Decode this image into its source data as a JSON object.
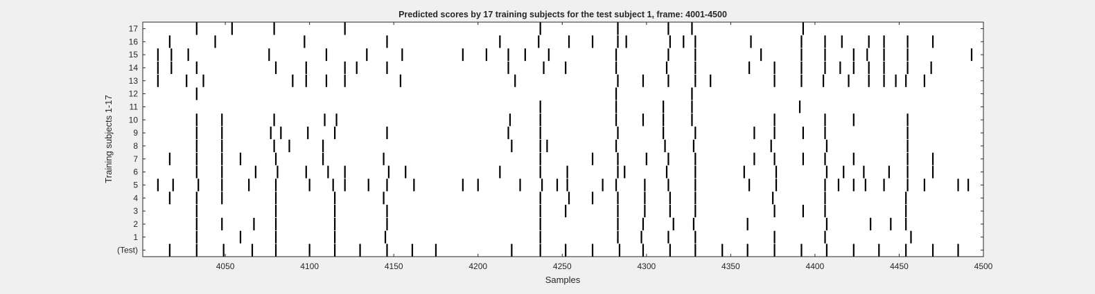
{
  "chart_data": {
    "type": "event-raster",
    "title": "Predicted scores by 17 training subjects for the test subject 1, frame: 4001-4500",
    "xlabel": "Samples",
    "ylabel": "Training subjects 1-17",
    "xlim": [
      4001,
      4500
    ],
    "x_ticks": [
      4050,
      4100,
      4150,
      4200,
      4250,
      4300,
      4350,
      4400,
      4450,
      4500
    ],
    "rows": [
      {
        "label": "(Test)",
        "events": [
          4017,
          4033,
          4049,
          4066,
          4080,
          4100,
          4115,
          4130,
          4146,
          4161,
          4175,
          4220,
          4237,
          4252,
          4268,
          4284,
          4298,
          4314,
          4329,
          4345,
          4360,
          4376,
          4392,
          4407,
          4423,
          4438,
          4454,
          4470,
          4485
        ]
      },
      {
        "label": "1",
        "events": [
          4033,
          4059,
          4080,
          4115,
          4145,
          4237,
          4283,
          4297,
          4313,
          4329,
          4376,
          4406,
          4457
        ]
      },
      {
        "label": "2",
        "events": [
          4033,
          4048,
          4067,
          4080,
          4115,
          4146,
          4237,
          4283,
          4298,
          4316,
          4328,
          4360,
          4407,
          4433,
          4445,
          4454
        ]
      },
      {
        "label": "3",
        "events": [
          4033,
          4080,
          4115,
          4146,
          4237,
          4252,
          4283,
          4299,
          4314,
          4329,
          4376,
          4393,
          4406,
          4454
        ]
      },
      {
        "label": "4",
        "events": [
          4017,
          4033,
          4048,
          4080,
          4115,
          4144,
          4237,
          4254,
          4268,
          4283,
          4299,
          4314,
          4329,
          4375,
          4406,
          4454
        ]
      },
      {
        "label": "5",
        "events": [
          4010,
          4019,
          4034,
          4048,
          4064,
          4080,
          4100,
          4114,
          4121,
          4135,
          4146,
          4162,
          4191,
          4200,
          4225,
          4238,
          4247,
          4253,
          4274,
          4282,
          4299,
          4313,
          4329,
          4361,
          4377,
          4406,
          4414,
          4423,
          4430,
          4441,
          4455,
          4465,
          4485,
          4491
        ]
      },
      {
        "label": "6",
        "events": [
          4033,
          4048,
          4068,
          4081,
          4098,
          4111,
          4121,
          4147,
          4157,
          4213,
          4237,
          4253,
          4283,
          4287,
          4312,
          4329,
          4358,
          4377,
          4407,
          4417,
          4429,
          4444,
          4455,
          4470
        ]
      },
      {
        "label": "7",
        "events": [
          4017,
          4033,
          4048,
          4059,
          4080,
          4108,
          4144,
          4237,
          4268,
          4283,
          4300,
          4313,
          4329,
          4364,
          4376,
          4393,
          4406,
          4423,
          4455,
          4470
        ]
      },
      {
        "label": "8",
        "events": [
          4033,
          4048,
          4079,
          4088,
          4108,
          4220,
          4237,
          4241,
          4282,
          4311,
          4328,
          4374,
          4407,
          4455
        ]
      },
      {
        "label": "9",
        "events": [
          4033,
          4048,
          4077,
          4083,
          4099,
          4115,
          4146,
          4218,
          4237,
          4283,
          4310,
          4329,
          4364,
          4376,
          4393,
          4406,
          4455
        ]
      },
      {
        "label": "10",
        "events": [
          4033,
          4048,
          4079,
          4109,
          4116,
          4219,
          4237,
          4282,
          4298,
          4310,
          4327,
          4376,
          4406,
          4423,
          4455
        ]
      },
      {
        "label": "11",
        "events": [
          4237,
          4282,
          4310,
          4327,
          4391
        ]
      },
      {
        "label": "12",
        "events": [
          4033,
          4282,
          4327
        ]
      },
      {
        "label": "13",
        "events": [
          4010,
          4027,
          4037,
          4090,
          4098,
          4110,
          4121,
          4154,
          4222,
          4283,
          4298,
          4313,
          4329,
          4338,
          4376,
          4392,
          4405,
          4420,
          4432,
          4441,
          4448,
          4454,
          4465
        ]
      },
      {
        "label": "14",
        "events": [
          4010,
          4018,
          4033,
          4080,
          4098,
          4121,
          4128,
          4146,
          4218,
          4239,
          4252,
          4282,
          4312,
          4329,
          4361,
          4376,
          4392,
          4406,
          4415,
          4423,
          4432,
          4441,
          4455,
          4469
        ]
      },
      {
        "label": "15",
        "events": [
          4010,
          4018,
          4028,
          4076,
          4110,
          4134,
          4155,
          4191,
          4205,
          4218,
          4228,
          4242,
          4282,
          4313,
          4329,
          4368,
          4392,
          4406,
          4423,
          4431,
          4441,
          4455,
          4493
        ]
      },
      {
        "label": "16",
        "events": [
          4017,
          4044,
          4097,
          4146,
          4213,
          4236,
          4254,
          4268,
          4283,
          4288,
          4314,
          4322,
          4329,
          4362,
          4392,
          4406,
          4416,
          4432,
          4441,
          4455,
          4470
        ]
      },
      {
        "label": "17",
        "events": [
          4033,
          4054,
          4079,
          4121,
          4237,
          4283,
          4313,
          4327,
          4393
        ]
      }
    ]
  }
}
